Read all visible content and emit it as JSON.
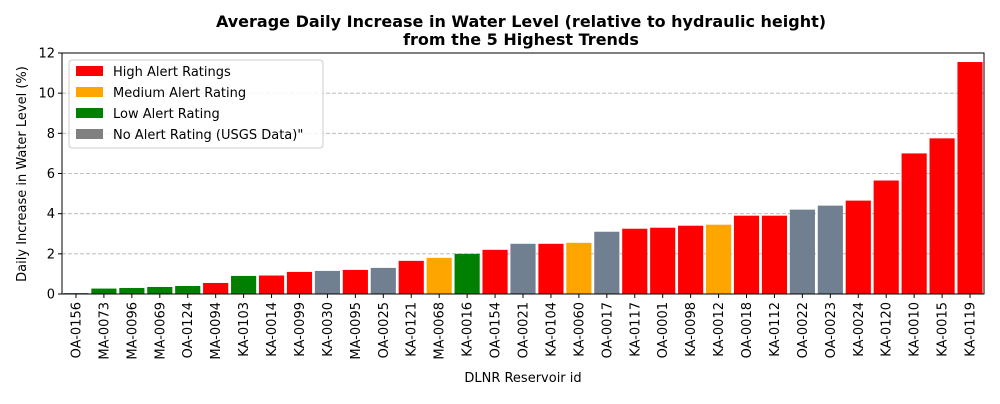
{
  "chart_data": {
    "type": "bar",
    "title": "Average Daily Increase in Water Level (relative to hydraulic height)",
    "subtitle": "from the 5 Highest Trends",
    "xlabel": "DLNR Reservoir id",
    "ylabel": "Daily Increase in Water Level (%)",
    "ylim": [
      0,
      12
    ],
    "yticks": [
      0,
      2,
      4,
      6,
      8,
      10,
      12
    ],
    "grid": "y-dashed",
    "legend_position": "top-left",
    "legend": [
      {
        "label": "High Alert Ratings",
        "color": "#ff0000",
        "key": "high"
      },
      {
        "label": "Medium Alert Rating",
        "color": "#ffa500",
        "key": "medium"
      },
      {
        "label": "Low Alert Rating",
        "color": "#008000",
        "key": "low"
      },
      {
        "label": "No Alert Rating (USGS Data)\"",
        "color": "#808080",
        "key": "none"
      }
    ],
    "bar_colors": {
      "high": "#ff0000",
      "medium": "#ffa500",
      "low": "#008000",
      "none": "#708090"
    },
    "categories": [
      "OA-0156",
      "MA-0073",
      "MA-0096",
      "MA-0069",
      "OA-0124",
      "MA-0094",
      "KA-0103",
      "KA-0014",
      "KA-0099",
      "KA-0030",
      "MA-0095",
      "OA-0025",
      "KA-0121",
      "MA-0068",
      "KA-0016",
      "OA-0154",
      "OA-0021",
      "KA-0104",
      "KA-0060",
      "OA-0017",
      "KA-0117",
      "OA-0001",
      "KA-0098",
      "KA-0012",
      "OA-0018",
      "KA-0112",
      "OA-0022",
      "OA-0023",
      "KA-0024",
      "KA-0120",
      "KA-0010",
      "KA-0015",
      "KA-0119"
    ],
    "values": [
      0.05,
      0.27,
      0.3,
      0.35,
      0.4,
      0.55,
      0.9,
      0.92,
      1.1,
      1.15,
      1.2,
      1.3,
      1.65,
      1.8,
      2.0,
      2.2,
      2.5,
      2.5,
      2.55,
      3.1,
      3.25,
      3.3,
      3.4,
      3.45,
      3.9,
      3.9,
      4.2,
      4.4,
      4.65,
      5.65,
      7.0,
      7.75,
      11.55
    ],
    "alert": [
      "none",
      "low",
      "low",
      "low",
      "low",
      "high",
      "low",
      "high",
      "high",
      "none",
      "high",
      "none",
      "high",
      "medium",
      "low",
      "high",
      "none",
      "high",
      "medium",
      "none",
      "high",
      "high",
      "high",
      "medium",
      "high",
      "high",
      "none",
      "none",
      "high",
      "high",
      "high",
      "high",
      "high"
    ]
  }
}
